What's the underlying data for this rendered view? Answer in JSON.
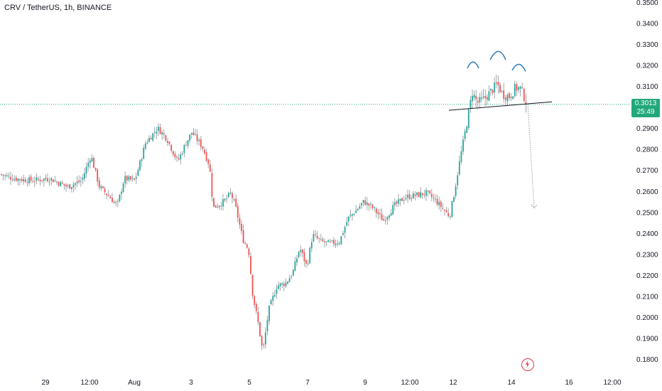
{
  "header": {
    "title": "CRV / TetherUS, 1h, BINANCE"
  },
  "price_badge": {
    "price": "0.3013",
    "countdown": "25:49"
  },
  "colors": {
    "up": "#26a69a",
    "down": "#ef5350",
    "wick": "#8a8f98",
    "price_line": "#22a87a",
    "pattern": "#2b7bb9",
    "badge": "#22a87a",
    "logo": "#e0334a"
  },
  "chart_data": {
    "type": "candlestick",
    "title": "CRV / TetherUS, 1h, BINANCE",
    "ylim": [
      0.175,
      0.35
    ],
    "y_ticks": [
      "0.3500",
      "0.3400",
      "0.3300",
      "0.3200",
      "0.3100",
      "0.3000",
      "0.2900",
      "0.2800",
      "0.2700",
      "0.2600",
      "0.2500",
      "0.2400",
      "0.2300",
      "0.2200",
      "0.2100",
      "0.2000",
      "0.1900",
      "0.1800"
    ],
    "x_tick_labels": [
      "29",
      "12:00",
      "Aug",
      "3",
      "5",
      "7",
      "9",
      "12:00",
      "12",
      "14",
      "16",
      "12:00"
    ],
    "current_price": 0.3013,
    "close_path": [
      [
        0,
        0.268
      ],
      [
        20,
        0.266
      ],
      [
        45,
        0.265
      ],
      [
        70,
        0.266
      ],
      [
        95,
        0.262
      ],
      [
        115,
        0.265
      ],
      [
        128,
        0.277
      ],
      [
        140,
        0.262
      ],
      [
        155,
        0.257
      ],
      [
        165,
        0.253
      ],
      [
        175,
        0.266
      ],
      [
        190,
        0.265
      ],
      [
        205,
        0.283
      ],
      [
        222,
        0.29
      ],
      [
        235,
        0.285
      ],
      [
        250,
        0.274
      ],
      [
        262,
        0.283
      ],
      [
        270,
        0.288
      ],
      [
        285,
        0.281
      ],
      [
        295,
        0.272
      ],
      [
        300,
        0.252
      ],
      [
        315,
        0.255
      ],
      [
        325,
        0.259
      ],
      [
        332,
        0.252
      ],
      [
        342,
        0.237
      ],
      [
        350,
        0.232
      ],
      [
        356,
        0.21
      ],
      [
        363,
        0.198
      ],
      [
        370,
        0.183
      ],
      [
        378,
        0.203
      ],
      [
        390,
        0.215
      ],
      [
        402,
        0.216
      ],
      [
        412,
        0.221
      ],
      [
        422,
        0.233
      ],
      [
        432,
        0.224
      ],
      [
        440,
        0.239
      ],
      [
        452,
        0.236
      ],
      [
        465,
        0.235
      ],
      [
        478,
        0.236
      ],
      [
        490,
        0.247
      ],
      [
        502,
        0.251
      ],
      [
        512,
        0.255
      ],
      [
        525,
        0.252
      ],
      [
        540,
        0.246
      ],
      [
        555,
        0.253
      ],
      [
        570,
        0.257
      ],
      [
        585,
        0.258
      ],
      [
        600,
        0.259
      ],
      [
        612,
        0.256
      ],
      [
        625,
        0.251
      ],
      [
        633,
        0.248
      ],
      [
        640,
        0.26
      ],
      [
        648,
        0.276
      ],
      [
        658,
        0.294
      ],
      [
        665,
        0.307
      ],
      [
        672,
        0.302
      ],
      [
        682,
        0.304
      ],
      [
        690,
        0.307
      ],
      [
        700,
        0.311
      ],
      [
        708,
        0.306
      ],
      [
        718,
        0.305
      ],
      [
        725,
        0.309
      ],
      [
        733,
        0.309
      ],
      [
        742,
        0.3013
      ]
    ],
    "pattern": {
      "name": "head and shoulders",
      "neckline": [
        [
          0.301
        ],
        [
          0.299
        ]
      ],
      "target": 0.252
    }
  }
}
